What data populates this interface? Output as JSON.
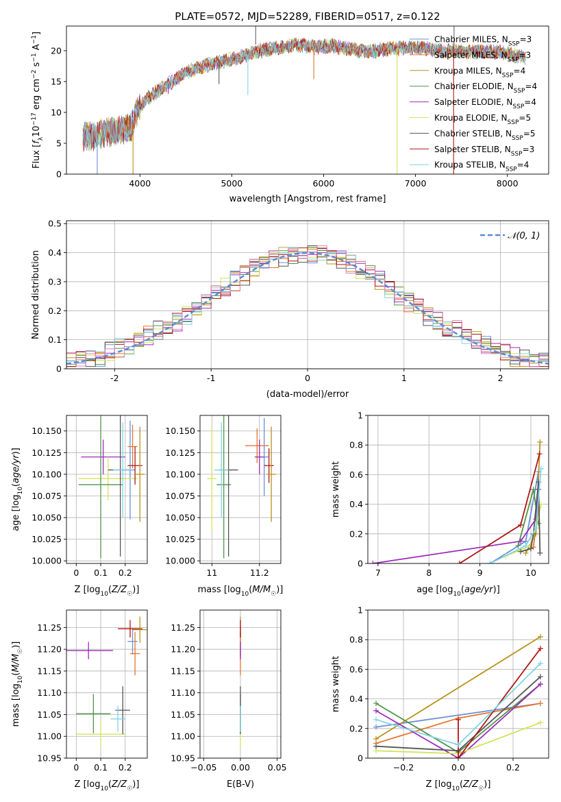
{
  "figure": {
    "title": "PLATE=0572, MJD=52289, FIBERID=0517, z=0.122"
  },
  "model_colors": [
    "#6a8fd6",
    "#e8742a",
    "#b8911a",
    "#4e9448",
    "#9c2ab8",
    "#d4e25c",
    "#555555",
    "#b01515",
    "#7fd4e6"
  ],
  "chart_data": [
    {
      "id": "spectrum",
      "type": "line",
      "xlabel": "wavelength [Angstrom, rest frame]",
      "ylabel": "Flux [f_λ 10^-17 erg cm^-2 s^-1 A^-1]",
      "xlim": [
        3200,
        8450
      ],
      "ylim": [
        0,
        24
      ],
      "xticks": [
        4000,
        5000,
        6000,
        7000,
        8000
      ],
      "yticks": [
        0,
        5,
        10,
        15,
        20
      ],
      "legend_position": "upper right",
      "series": [
        {
          "name": "Chabrier MILES, N_SSP=3"
        },
        {
          "name": "Salpeter MILES, N_SSP=3"
        },
        {
          "name": "Kroupa MILES, N_SSP=4"
        },
        {
          "name": "Chabrier ELODIE, N_SSP=4"
        },
        {
          "name": "Salpeter ELODIE, N_SSP=4"
        },
        {
          "name": "Kroupa ELODIE, N_SSP=5"
        },
        {
          "name": "Chabrier STELIB, N_SSP=5"
        },
        {
          "name": "Salpeter STELIB, N_SSP=3"
        },
        {
          "name": "Kroupa STELIB, N_SSP=4"
        }
      ],
      "continuum": {
        "x": [
          3380,
          3500,
          3700,
          3900,
          4000,
          4100,
          4300,
          4500,
          4700,
          4900,
          5100,
          5300,
          5500,
          5700,
          5900,
          6100,
          6300,
          6500,
          6700,
          6900,
          7100,
          7300,
          7500,
          7700,
          7900,
          8100,
          8200
        ],
        "y": [
          6.0,
          6.2,
          7.0,
          7.5,
          11.0,
          12.5,
          14.5,
          16.5,
          17.5,
          18.3,
          19.0,
          20.0,
          20.5,
          21.0,
          20.6,
          20.8,
          20.2,
          19.8,
          20.3,
          20.5,
          20.4,
          20.0,
          19.8,
          19.8,
          19.8,
          19.2,
          19.0
        ]
      },
      "features": [
        {
          "x": 3535,
          "y": 0
        },
        {
          "x": 3925,
          "y": 0
        },
        {
          "x": 4310,
          "y": 13.0
        },
        {
          "x": 4861,
          "y": 14.6
        },
        {
          "x": 5175,
          "y": 12.8
        },
        {
          "x": 5893,
          "y": 15.4
        },
        {
          "x": 6563,
          "y": 18.8
        },
        {
          "x": 6800,
          "y": 0
        },
        {
          "x": 7415,
          "y": 0
        }
      ]
    },
    {
      "id": "residuals",
      "type": "histogram",
      "xlabel": "(data-model)/error",
      "ylabel": "Normed distribution",
      "xlim": [
        -2.5,
        2.5
      ],
      "ylim": [
        0,
        0.51
      ],
      "xticks": [
        -2,
        -1,
        0,
        1,
        2
      ],
      "yticks": [
        0.0,
        0.1,
        0.2,
        0.3,
        0.4,
        0.5
      ],
      "bin_width": 0.1,
      "legend": "𝒩(0, 1)",
      "legend_position": "upper right",
      "curve": {
        "name": "N(0,1)",
        "mu": 0,
        "sigma": 1,
        "color": "#5b8ad4"
      }
    },
    {
      "id": "age_vs_Z",
      "type": "errorbar",
      "xlabel": "Z [log10(Z/Z☉)]",
      "ylabel": "age [log10(age/yr)]",
      "xlim": [
        -0.04,
        0.29
      ],
      "ylim": [
        9.997,
        10.168
      ],
      "xticks": [
        0.0,
        0.1,
        0.2
      ],
      "yticks": [
        10.0,
        10.025,
        10.05,
        10.075,
        10.1,
        10.125,
        10.15
      ],
      "ytick_labels": [
        "10.000",
        "10.025",
        "10.050",
        "10.075",
        "10.100",
        "10.125",
        "10.150"
      ],
      "points": [
        {
          "x": 0.22,
          "xerr": 0.02,
          "y": 10.105,
          "yerr": 0.057,
          "c": 0
        },
        {
          "x": 0.23,
          "xerr": 0.02,
          "y": 10.132,
          "yerr": 0.025,
          "c": 1
        },
        {
          "x": 0.11,
          "xerr": 0.09,
          "y": 10.12,
          "yerr": 0.02,
          "c": 4
        },
        {
          "x": 0.13,
          "xerr": 0.12,
          "y": 10.095,
          "yerr": 0.025,
          "c": 5
        },
        {
          "x": 0.1,
          "xerr": 0.09,
          "y": 10.088,
          "yerr": 0.085,
          "c": 3
        },
        {
          "x": 0.18,
          "xerr": 0.05,
          "y": 10.105,
          "yerr": 0.1,
          "c": 6
        },
        {
          "x": 0.24,
          "xerr": 0.03,
          "y": 10.11,
          "yerr": 0.022,
          "c": 7
        },
        {
          "x": 0.26,
          "xerr": 0.02,
          "y": 10.1,
          "yerr": 0.055,
          "c": 2
        },
        {
          "x": 0.19,
          "xerr": 0.04,
          "y": 10.105,
          "yerr": 0.055,
          "c": 8
        }
      ]
    },
    {
      "id": "age_vs_mass",
      "type": "errorbar",
      "xlabel": "mass [log10(M/M☉)]",
      "ylabel": "",
      "xlim": [
        10.95,
        11.29
      ],
      "ylim": [
        9.997,
        10.168
      ],
      "xticks": [
        11.0,
        11.2
      ],
      "yticks": [
        10.0,
        10.025,
        10.05,
        10.075,
        10.1,
        10.125,
        10.15
      ],
      "ytick_labels": [
        "10.000",
        "10.025",
        "10.050",
        "10.075",
        "10.100",
        "10.125",
        "10.150"
      ],
      "points": [
        {
          "x": 11.22,
          "xerr": 0.02,
          "y": 10.12,
          "yerr": 0.045,
          "c": 0
        },
        {
          "x": 11.19,
          "xerr": 0.05,
          "y": 10.133,
          "yerr": 0.02,
          "c": 1
        },
        {
          "x": 11.2,
          "xerr": 0.02,
          "y": 10.12,
          "yerr": 0.02,
          "c": 4
        },
        {
          "x": 11.0,
          "xerr": 0.02,
          "y": 10.095,
          "yerr": 0.06,
          "c": 5
        },
        {
          "x": 11.05,
          "xerr": 0.03,
          "y": 10.088,
          "yerr": 0.085,
          "c": 3
        },
        {
          "x": 11.07,
          "xerr": 0.04,
          "y": 10.105,
          "yerr": 0.1,
          "c": 6
        },
        {
          "x": 11.24,
          "xerr": 0.02,
          "y": 10.11,
          "yerr": 0.02,
          "c": 7
        },
        {
          "x": 11.25,
          "xerr": 0.02,
          "y": 10.1,
          "yerr": 0.055,
          "c": 2
        },
        {
          "x": 11.04,
          "xerr": 0.03,
          "y": 10.105,
          "yerr": 0.055,
          "c": 8
        }
      ]
    },
    {
      "id": "weight_vs_age",
      "type": "line",
      "xlabel": "age [log10(age/yr)]",
      "ylabel": "mass weight",
      "xlim": [
        6.8,
        10.35
      ],
      "ylim": [
        0,
        1.0
      ],
      "xticks": [
        7,
        8,
        9,
        10
      ],
      "yticks": [
        0.0,
        0.2,
        0.4,
        0.6,
        0.8,
        1.0
      ],
      "series": [
        {
          "c": 0,
          "x": [
            9.2,
            9.9,
            10.15
          ],
          "y": [
            0.0,
            0.15,
            0.62
          ]
        },
        {
          "c": 1,
          "x": [
            10.0,
            10.05,
            10.15
          ],
          "y": [
            0.1,
            0.11,
            0.38
          ]
        },
        {
          "c": 2,
          "x": [
            9.9,
            10.1,
            10.18
          ],
          "y": [
            0.07,
            0.2,
            0.82
          ]
        },
        {
          "c": 3,
          "x": [
            9.75,
            10.05,
            10.15
          ],
          "y": [
            0.12,
            0.5,
            0.27
          ]
        },
        {
          "c": 4,
          "x": [
            6.9,
            9.8,
            10.1,
            10.15
          ],
          "y": [
            0.0,
            0.15,
            0.3,
            0.5
          ]
        },
        {
          "c": 5,
          "x": [
            9.5,
            10.0,
            10.1,
            10.2
          ],
          "y": [
            0.05,
            0.12,
            0.24,
            0.4
          ]
        },
        {
          "c": 6,
          "x": [
            9.8,
            10.0,
            10.05,
            10.15,
            10.18
          ],
          "y": [
            0.08,
            0.1,
            0.2,
            0.55,
            0.07
          ]
        },
        {
          "c": 7,
          "x": [
            8.6,
            9.8,
            10.17
          ],
          "y": [
            0.0,
            0.26,
            0.74
          ]
        },
        {
          "c": 8,
          "x": [
            9.2,
            9.9,
            10.1,
            10.2
          ],
          "y": [
            0.0,
            0.12,
            0.24,
            0.64
          ]
        }
      ]
    },
    {
      "id": "mass_vs_Z",
      "type": "errorbar",
      "xlabel": "Z [log10(Z/Z☉)]",
      "ylabel": "mass [log10(M/M☉)]",
      "xlim": [
        -0.04,
        0.29
      ],
      "ylim": [
        10.95,
        11.29
      ],
      "xticks": [
        0.0,
        0.1,
        0.2
      ],
      "yticks": [
        10.95,
        11.0,
        11.05,
        11.1,
        11.15,
        11.2,
        11.25
      ],
      "ytick_labels": [
        "10.95",
        "11.00",
        "11.05",
        "11.10",
        "11.15",
        "11.20",
        "11.25"
      ],
      "points": [
        {
          "x": 0.23,
          "xerr": 0.02,
          "y": 11.218,
          "yerr": 0.03,
          "c": 0
        },
        {
          "x": 0.24,
          "xerr": 0.02,
          "y": 11.19,
          "yerr": 0.05,
          "c": 1
        },
        {
          "x": 0.05,
          "xerr": 0.1,
          "y": 11.197,
          "yerr": 0.02,
          "c": 4
        },
        {
          "x": 0.1,
          "xerr": 0.1,
          "y": 11.005,
          "yerr": 0.03,
          "c": 5
        },
        {
          "x": 0.07,
          "xerr": 0.07,
          "y": 11.052,
          "yerr": 0.045,
          "c": 3
        },
        {
          "x": 0.19,
          "xerr": 0.03,
          "y": 11.06,
          "yerr": 0.055,
          "c": 6
        },
        {
          "x": 0.22,
          "xerr": 0.05,
          "y": 11.247,
          "yerr": 0.02,
          "c": 7
        },
        {
          "x": 0.26,
          "xerr": 0.03,
          "y": 11.245,
          "yerr": 0.03,
          "c": 2
        },
        {
          "x": 0.17,
          "xerr": 0.03,
          "y": 11.04,
          "yerr": 0.03,
          "c": 8
        }
      ]
    },
    {
      "id": "mass_vs_EBV",
      "type": "errorbar",
      "xlabel": "E(B-V)",
      "ylabel": "",
      "xlim": [
        -0.055,
        0.055
      ],
      "ylim": [
        10.95,
        11.29
      ],
      "xticks": [
        -0.05,
        0.0,
        0.05
      ],
      "xtick_labels": [
        "−0.05",
        "0.00",
        "0.05"
      ],
      "yticks": [
        10.95,
        11.0,
        11.05,
        11.1,
        11.15,
        11.2,
        11.25
      ],
      "ytick_labels": [
        "10.95",
        "11.00",
        "11.05",
        "11.10",
        "11.15",
        "11.20",
        "11.25"
      ],
      "points": [
        {
          "x": 0,
          "xerr": 0,
          "y": 11.218,
          "yerr": 0.035,
          "c": 0
        },
        {
          "x": 0,
          "xerr": 0,
          "y": 11.19,
          "yerr": 0.05,
          "c": 1
        },
        {
          "x": 0,
          "xerr": 0,
          "y": 11.245,
          "yerr": 0.03,
          "c": 2
        },
        {
          "x": 0,
          "xerr": 0,
          "y": 11.052,
          "yerr": 0.045,
          "c": 3
        },
        {
          "x": 0,
          "xerr": 0,
          "y": 11.197,
          "yerr": 0.02,
          "c": 4
        },
        {
          "x": 0,
          "xerr": 0,
          "y": 11.005,
          "yerr": 0.03,
          "c": 5
        },
        {
          "x": 0,
          "xerr": 0,
          "y": 11.06,
          "yerr": 0.055,
          "c": 6
        },
        {
          "x": 0,
          "xerr": 0,
          "y": 11.247,
          "yerr": 0.02,
          "c": 7
        },
        {
          "x": 0,
          "xerr": 0,
          "y": 11.04,
          "yerr": 0.03,
          "c": 8
        }
      ]
    },
    {
      "id": "weight_vs_Z",
      "type": "line",
      "xlabel": "Z [log10(Z/Z☉)]",
      "ylabel": "mass weight",
      "xlim": [
        -0.33,
        0.33
      ],
      "ylim": [
        0,
        1.0
      ],
      "xticks": [
        -0.2,
        0.0,
        0.2
      ],
      "xtick_labels": [
        "−0.2",
        "0.0",
        "0.2"
      ],
      "yticks": [
        0.0,
        0.2,
        0.4,
        0.6,
        0.8,
        1.0
      ],
      "series": [
        {
          "c": 0,
          "x": [
            -0.3,
            0.3
          ],
          "y": [
            0.21,
            0.37
          ]
        },
        {
          "c": 1,
          "x": [
            -0.3,
            0.0,
            0.3
          ],
          "y": [
            0.1,
            0.27,
            0.37
          ]
        },
        {
          "c": 2,
          "x": [
            -0.3,
            0.3
          ],
          "y": [
            0.13,
            0.82
          ]
        },
        {
          "c": 3,
          "x": [
            -0.3,
            0.0,
            0.3
          ],
          "y": [
            0.37,
            0.04,
            0.5
          ]
        },
        {
          "c": 4,
          "x": [
            -0.3,
            0.0,
            0.3
          ],
          "y": [
            0.32,
            0.0,
            0.5
          ]
        },
        {
          "c": 5,
          "x": [
            -0.3,
            0.0,
            0.3
          ],
          "y": [
            0.05,
            0.03,
            0.24
          ]
        },
        {
          "c": 6,
          "x": [
            -0.3,
            0.0,
            0.3
          ],
          "y": [
            0.08,
            0.05,
            0.55
          ]
        },
        {
          "c": 7,
          "x": [
            0.0,
            0.0,
            0.3
          ],
          "y": [
            0.26,
            0.0,
            0.74
          ]
        },
        {
          "c": 8,
          "x": [
            -0.3,
            0.0,
            0.3
          ],
          "y": [
            0.26,
            0.09,
            0.64
          ]
        }
      ]
    }
  ]
}
